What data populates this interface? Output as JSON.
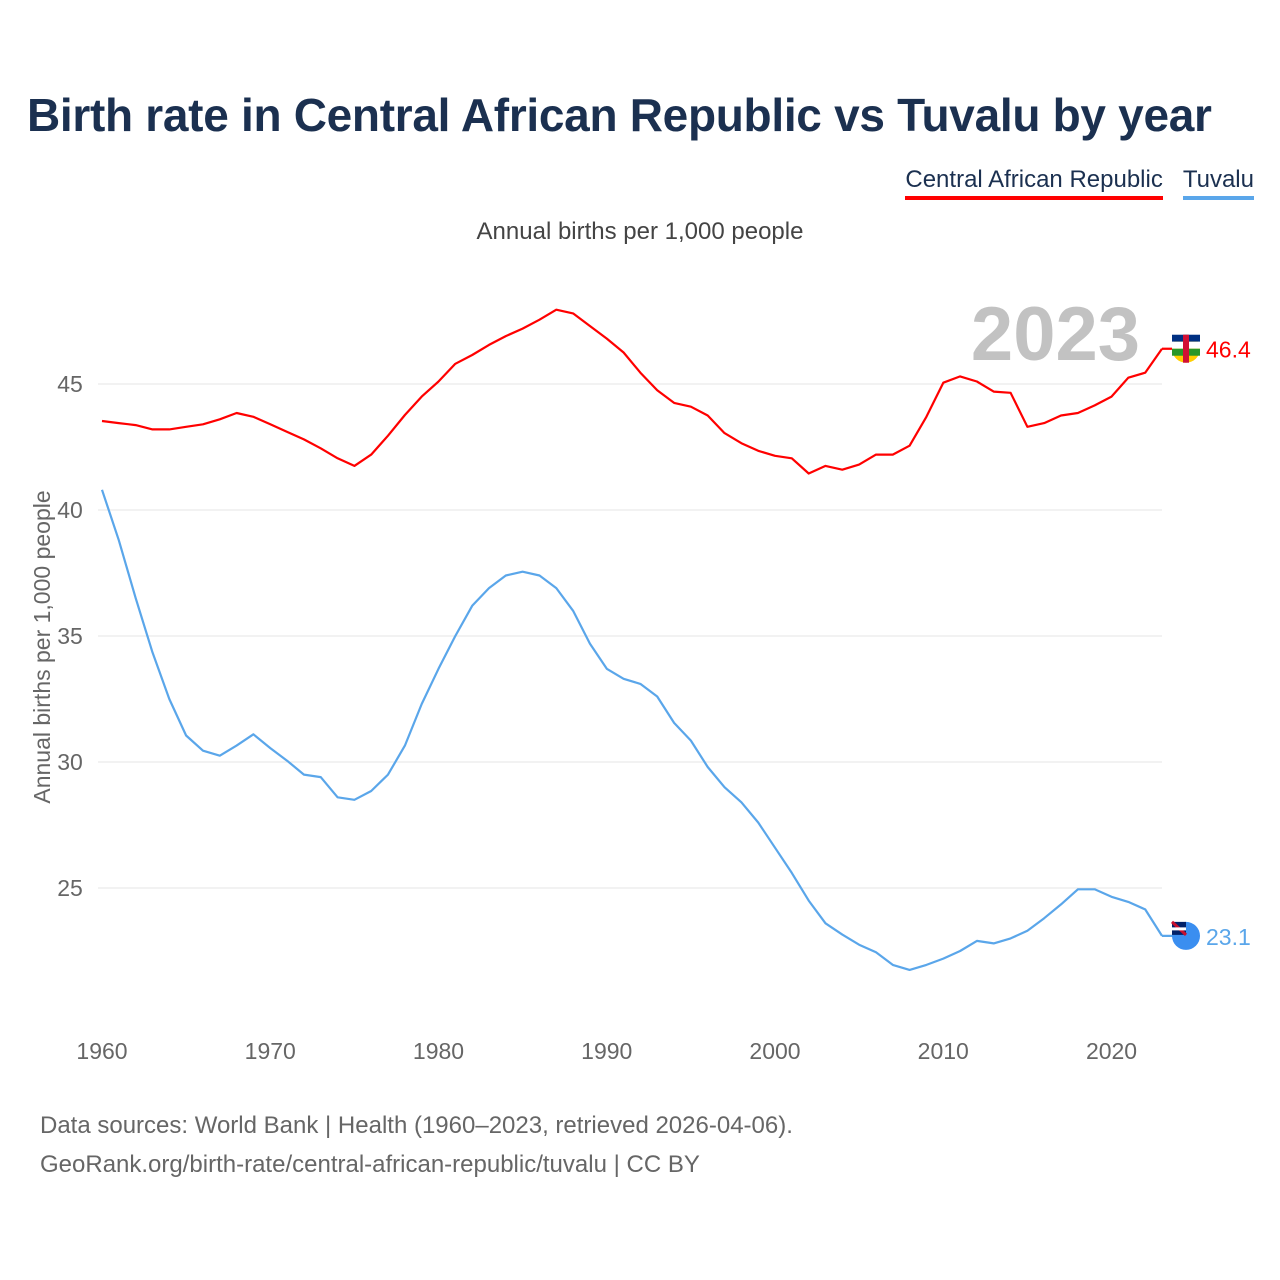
{
  "title": "Birth rate in Central African Republic vs Tuvalu by year",
  "legend": [
    "Central African Republic",
    "Tuvalu"
  ],
  "year_label": "2023",
  "footer": {
    "line1": "Data sources: World Bank | Health (1960–2023, retrieved 2026-04-06).",
    "line2": "GeoRank.org/birth-rate/central-african-republic/tuvalu | CC BY"
  },
  "chart_data": {
    "type": "line",
    "title": "Birth rate in Central African Republic vs Tuvalu by year",
    "subtitle": "Annual births per 1,000 people",
    "xlabel": "",
    "ylabel": "Annual births per 1,000 people",
    "xlim": [
      1960,
      2023
    ],
    "ylim": [
      21,
      49.5
    ],
    "xticks": [
      1960,
      1970,
      1980,
      1990,
      2000,
      2010,
      2020
    ],
    "yticks": [
      25,
      30,
      35,
      40,
      45
    ],
    "grid": true,
    "legend_position": "top-right",
    "x_start": 1960,
    "series": [
      {
        "name": "Central African Republic",
        "color": "#ff0000",
        "end_label": "46.4",
        "values": [
          43.53,
          43.45,
          43.37,
          43.2,
          43.2,
          43.3,
          43.4,
          43.6,
          43.85,
          43.7,
          43.4,
          43.1,
          42.8,
          42.45,
          42.05,
          41.75,
          42.2,
          42.95,
          43.77,
          44.5,
          45.1,
          45.8,
          46.15,
          46.55,
          46.9,
          47.2,
          47.55,
          47.95,
          47.8,
          47.3,
          46.8,
          46.25,
          45.45,
          44.75,
          44.25,
          44.1,
          43.75,
          43.05,
          42.65,
          42.35,
          42.15,
          42.05,
          41.45,
          41.75,
          41.6,
          41.8,
          42.2,
          42.2,
          42.55,
          43.7,
          45.05,
          45.3,
          45.1,
          44.7,
          44.65,
          43.3,
          43.45,
          43.75,
          43.85,
          44.15,
          44.5,
          45.25,
          45.45,
          46.4
        ]
      },
      {
        "name": "Tuvalu",
        "color": "#5aa6ea",
        "end_label": "23.1",
        "values": [
          40.8,
          38.8,
          36.5,
          34.35,
          32.5,
          31.05,
          30.45,
          30.25,
          30.65,
          31.1,
          30.55,
          30.05,
          29.5,
          29.4,
          28.6,
          28.5,
          28.85,
          29.5,
          30.65,
          32.3,
          33.7,
          35.0,
          36.2,
          36.9,
          37.4,
          37.55,
          37.4,
          36.9,
          36.0,
          34.7,
          33.7,
          33.3,
          33.1,
          32.6,
          31.55,
          30.85,
          29.8,
          29.0,
          28.4,
          27.6,
          26.6,
          25.6,
          24.5,
          23.6,
          23.15,
          22.75,
          22.45,
          21.95,
          21.75,
          21.95,
          22.2,
          22.5,
          22.9,
          22.8,
          23.0,
          23.3,
          23.8,
          24.35,
          24.95,
          24.95,
          24.65,
          24.45,
          24.15,
          23.1
        ]
      }
    ]
  }
}
